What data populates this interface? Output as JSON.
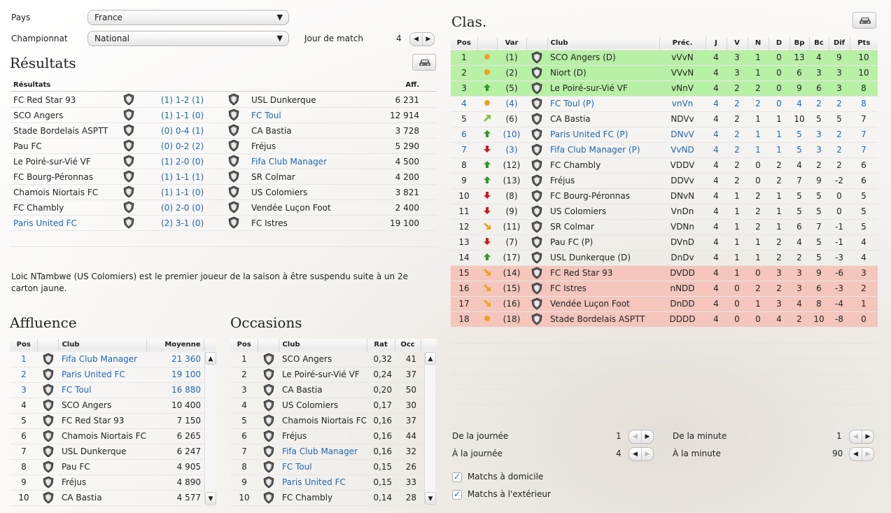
{
  "filters": {
    "country_label": "Pays",
    "country_value": "France",
    "league_label": "Championnat",
    "league_value": "National",
    "matchday_label": "Jour de match",
    "matchday_value": "4"
  },
  "results": {
    "title": "Résultats",
    "col_results": "Résultats",
    "col_att": "Aff.",
    "rows": [
      {
        "home": "FC Red Star 93",
        "score": "(1) 1-2 (1)",
        "away": "USL Dunkerque",
        "att": "6 231",
        "home_blue": false,
        "away_blue": false
      },
      {
        "home": "SCO Angers",
        "score": "(1) 1-1 (0)",
        "away": "FC Toul",
        "att": "12 914",
        "home_blue": false,
        "away_blue": true
      },
      {
        "home": "Stade Bordelais ASPTT",
        "score": "(0) 0-4 (1)",
        "away": "CA Bastia",
        "att": "3 728",
        "home_blue": false,
        "away_blue": false
      },
      {
        "home": "Pau FC",
        "score": "(0) 0-2 (2)",
        "away": "Fréjus",
        "att": "5 290",
        "home_blue": false,
        "away_blue": false
      },
      {
        "home": "Le Poiré-sur-Vié VF",
        "score": "(1) 2-0 (0)",
        "away": "Fifa Club Manager",
        "att": "4 500",
        "home_blue": false,
        "away_blue": true
      },
      {
        "home": "FC Bourg-Péronnas",
        "score": "(1) 1-1 (1)",
        "away": "SR Colmar",
        "att": "4 200",
        "home_blue": false,
        "away_blue": false
      },
      {
        "home": "Chamois Niortais FC",
        "score": "(1) 1-1 (0)",
        "away": "US Colomiers",
        "att": "3 821",
        "home_blue": false,
        "away_blue": false
      },
      {
        "home": "FC Chambly",
        "score": "(0) 2-0 (0)",
        "away": "Vendée Luçon Foot",
        "att": "2 400",
        "home_blue": false,
        "away_blue": false
      },
      {
        "home": "Paris United FC",
        "score": "(2) 3-1 (0)",
        "away": "FC Istres",
        "att": "19 100",
        "home_blue": true,
        "away_blue": false
      }
    ],
    "news": "Loic NTambwe (US Colomiers) est le premier joueur de la saison à être suspendu suite à un 2e carton jaune."
  },
  "attendance": {
    "title": "Affluence",
    "col_pos": "Pos",
    "col_club": "Club",
    "col_avg": "Moyenne",
    "rows": [
      {
        "pos": "1",
        "club": "Fifa Club Manager",
        "avg": "21 360",
        "blue": true
      },
      {
        "pos": "2",
        "club": "Paris United FC",
        "avg": "19 100",
        "blue": true
      },
      {
        "pos": "3",
        "club": "FC Toul",
        "avg": "16 880",
        "blue": true
      },
      {
        "pos": "4",
        "club": "SCO Angers",
        "avg": "10 400",
        "blue": false
      },
      {
        "pos": "5",
        "club": "FC Red Star 93",
        "avg": "7 150",
        "blue": false
      },
      {
        "pos": "6",
        "club": "Chamois Niortais FC",
        "avg": "6 265",
        "blue": false
      },
      {
        "pos": "7",
        "club": "USL Dunkerque",
        "avg": "6 247",
        "blue": false
      },
      {
        "pos": "8",
        "club": "Pau FC",
        "avg": "4 905",
        "blue": false
      },
      {
        "pos": "9",
        "club": "Fréjus",
        "avg": "4 890",
        "blue": false
      },
      {
        "pos": "10",
        "club": "CA Bastia",
        "avg": "4 577",
        "blue": false
      }
    ]
  },
  "chances": {
    "title": "Occasions",
    "col_pos": "Pos",
    "col_club": "Club",
    "col_rat": "Rat",
    "col_occ": "Occ",
    "rows": [
      {
        "pos": "1",
        "club": "SCO Angers",
        "rat": "0,32",
        "occ": "41",
        "blue": false
      },
      {
        "pos": "2",
        "club": "Le Poiré-sur-Vié VF",
        "rat": "0,24",
        "occ": "37",
        "blue": false
      },
      {
        "pos": "3",
        "club": "CA Bastia",
        "rat": "0,20",
        "occ": "50",
        "blue": false
      },
      {
        "pos": "4",
        "club": "US Colomiers",
        "rat": "0,17",
        "occ": "30",
        "blue": false
      },
      {
        "pos": "5",
        "club": "Chamois Niortais FC",
        "rat": "0,16",
        "occ": "37",
        "blue": false
      },
      {
        "pos": "6",
        "club": "Fréjus",
        "rat": "0,16",
        "occ": "44",
        "blue": false
      },
      {
        "pos": "7",
        "club": "Fifa Club Manager",
        "rat": "0,16",
        "occ": "32",
        "blue": true
      },
      {
        "pos": "8",
        "club": "FC Toul",
        "rat": "0,15",
        "occ": "26",
        "blue": true
      },
      {
        "pos": "9",
        "club": "Paris United FC",
        "rat": "0,15",
        "occ": "33",
        "blue": true
      },
      {
        "pos": "10",
        "club": "FC Chambly",
        "rat": "0,14",
        "occ": "28",
        "blue": false
      }
    ]
  },
  "standings": {
    "title": "Clas.",
    "cols": [
      "Pos",
      "",
      "Var",
      "",
      "Club",
      "Préc.",
      "J",
      "V",
      "N",
      "D",
      "Bp",
      "Bc",
      "Dif",
      "Pts"
    ],
    "rows": [
      {
        "pos": "1",
        "trend": "same",
        "var": "(1)",
        "club": "SCO Angers  (D)",
        "prev": "vVvN",
        "j": "4",
        "v": "3",
        "n": "1",
        "d": "0",
        "bp": "13",
        "bc": "4",
        "dif": "9",
        "pts": "10",
        "zone": "green",
        "blue": false
      },
      {
        "pos": "2",
        "trend": "same",
        "var": "(2)",
        "club": "Niort  (D)",
        "prev": "VVvN",
        "j": "4",
        "v": "3",
        "n": "1",
        "d": "0",
        "bp": "6",
        "bc": "3",
        "dif": "3",
        "pts": "10",
        "zone": "green",
        "blue": false
      },
      {
        "pos": "3",
        "trend": "up",
        "var": "(5)",
        "club": "Le Poiré-sur-Vié VF",
        "prev": "vNnV",
        "j": "4",
        "v": "2",
        "n": "2",
        "d": "0",
        "bp": "9",
        "bc": "6",
        "dif": "3",
        "pts": "8",
        "zone": "green",
        "blue": false
      },
      {
        "pos": "4",
        "trend": "same",
        "var": "(4)",
        "club": "FC Toul  (P)",
        "prev": "vnVn",
        "j": "4",
        "v": "2",
        "n": "2",
        "d": "0",
        "bp": "4",
        "bc": "2",
        "dif": "2",
        "pts": "8",
        "zone": "",
        "blue": true
      },
      {
        "pos": "5",
        "trend": "upright",
        "var": "(6)",
        "club": "CA Bastia",
        "prev": "NDVv",
        "j": "4",
        "v": "2",
        "n": "1",
        "d": "1",
        "bp": "10",
        "bc": "5",
        "dif": "5",
        "pts": "7",
        "zone": "",
        "blue": false
      },
      {
        "pos": "6",
        "trend": "up",
        "var": "(10)",
        "club": "Paris United FC  (P)",
        "prev": "DNvV",
        "j": "4",
        "v": "2",
        "n": "1",
        "d": "1",
        "bp": "5",
        "bc": "3",
        "dif": "2",
        "pts": "7",
        "zone": "",
        "blue": true
      },
      {
        "pos": "7",
        "trend": "down",
        "var": "(3)",
        "club": "Fifa Club Manager  (P)",
        "prev": "VvND",
        "j": "4",
        "v": "2",
        "n": "1",
        "d": "1",
        "bp": "5",
        "bc": "3",
        "dif": "2",
        "pts": "7",
        "zone": "",
        "blue": true
      },
      {
        "pos": "8",
        "trend": "up",
        "var": "(12)",
        "club": "FC Chambly",
        "prev": "VDDV",
        "j": "4",
        "v": "2",
        "n": "0",
        "d": "2",
        "bp": "4",
        "bc": "2",
        "dif": "2",
        "pts": "6",
        "zone": "",
        "blue": false
      },
      {
        "pos": "9",
        "trend": "up",
        "var": "(13)",
        "club": "Fréjus",
        "prev": "DDVv",
        "j": "4",
        "v": "2",
        "n": "0",
        "d": "2",
        "bp": "7",
        "bc": "9",
        "dif": "-2",
        "pts": "6",
        "zone": "",
        "blue": false
      },
      {
        "pos": "10",
        "trend": "down",
        "var": "(8)",
        "club": "FC Bourg-Péronnas",
        "prev": "DNvN",
        "j": "4",
        "v": "1",
        "n": "2",
        "d": "1",
        "bp": "5",
        "bc": "5",
        "dif": "0",
        "pts": "5",
        "zone": "",
        "blue": false
      },
      {
        "pos": "11",
        "trend": "down",
        "var": "(9)",
        "club": "US Colomiers",
        "prev": "VnDn",
        "j": "4",
        "v": "1",
        "n": "2",
        "d": "1",
        "bp": "5",
        "bc": "5",
        "dif": "0",
        "pts": "5",
        "zone": "",
        "blue": false
      },
      {
        "pos": "12",
        "trend": "downright",
        "var": "(11)",
        "club": "SR Colmar",
        "prev": "VDNn",
        "j": "4",
        "v": "1",
        "n": "2",
        "d": "1",
        "bp": "6",
        "bc": "7",
        "dif": "-1",
        "pts": "5",
        "zone": "",
        "blue": false
      },
      {
        "pos": "13",
        "trend": "down",
        "var": "(7)",
        "club": "Pau FC  (P)",
        "prev": "DVnD",
        "j": "4",
        "v": "1",
        "n": "1",
        "d": "2",
        "bp": "4",
        "bc": "5",
        "dif": "-1",
        "pts": "4",
        "zone": "",
        "blue": false
      },
      {
        "pos": "14",
        "trend": "up",
        "var": "(17)",
        "club": "USL Dunkerque  (D)",
        "prev": "DnDv",
        "j": "4",
        "v": "1",
        "n": "1",
        "d": "2",
        "bp": "2",
        "bc": "5",
        "dif": "-3",
        "pts": "4",
        "zone": "",
        "blue": false
      },
      {
        "pos": "15",
        "trend": "downright",
        "var": "(14)",
        "club": "FC Red Star 93",
        "prev": "DVDD",
        "j": "4",
        "v": "1",
        "n": "0",
        "d": "3",
        "bp": "3",
        "bc": "9",
        "dif": "-6",
        "pts": "3",
        "zone": "red",
        "blue": false
      },
      {
        "pos": "16",
        "trend": "downright",
        "var": "(15)",
        "club": "FC Istres",
        "prev": "nNDD",
        "j": "4",
        "v": "0",
        "n": "2",
        "d": "2",
        "bp": "3",
        "bc": "6",
        "dif": "-3",
        "pts": "2",
        "zone": "red",
        "blue": false
      },
      {
        "pos": "17",
        "trend": "downright",
        "var": "(16)",
        "club": "Vendée Luçon Foot",
        "prev": "DnDD",
        "j": "4",
        "v": "0",
        "n": "1",
        "d": "3",
        "bp": "4",
        "bc": "8",
        "dif": "-4",
        "pts": "1",
        "zone": "red",
        "blue": false
      },
      {
        "pos": "18",
        "trend": "same",
        "var": "(18)",
        "club": "Stade Bordelais ASPTT",
        "prev": "DDDD",
        "j": "4",
        "v": "0",
        "n": "0",
        "d": "4",
        "bp": "2",
        "bc": "10",
        "dif": "-8",
        "pts": "0",
        "zone": "red",
        "blue": false
      }
    ]
  },
  "range": {
    "from_day_label": "De la journée",
    "from_day_value": "1",
    "to_day_label": "À la journée",
    "to_day_value": "4",
    "from_min_label": "De la minute",
    "from_min_value": "1",
    "to_min_label": "À la minute",
    "to_min_value": "90",
    "home_label": "Matchs à domicile",
    "away_label": "Matchs à l'extérieur"
  },
  "colors": {
    "link_blue": "#1f67b1",
    "promo_green": "#b8f0a6",
    "releg_red": "#f5c6bc"
  }
}
